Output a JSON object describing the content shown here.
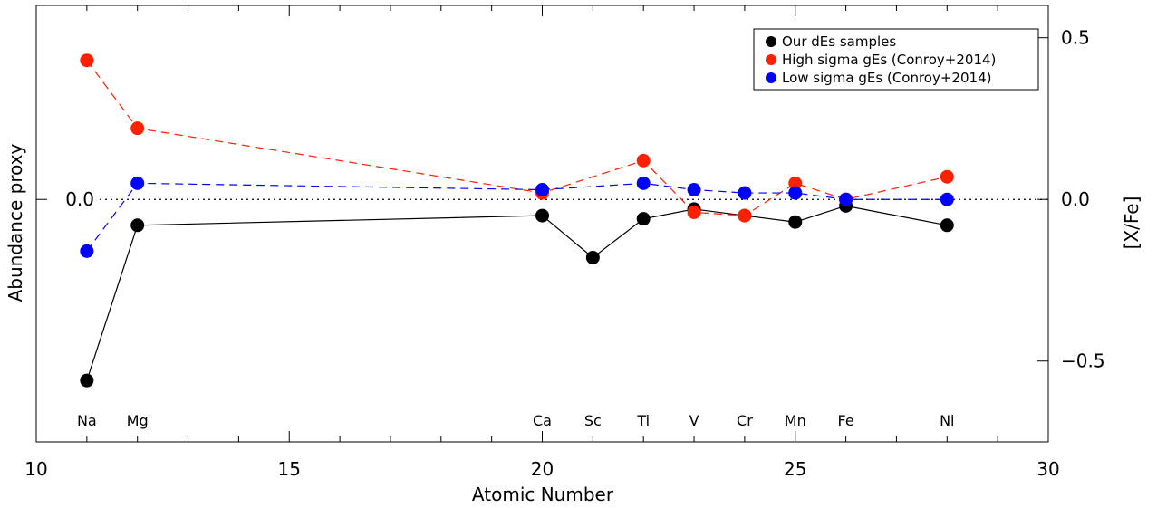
{
  "chart_data": {
    "type": "line",
    "xlabel": "Atomic Number",
    "ylabel": "Abundance proxy",
    "ylabel_right": "[X/Fe]",
    "xlim": [
      10,
      30
    ],
    "ylim": [
      -0.75,
      0.6
    ],
    "x_ticks": [
      "10",
      "15",
      "20",
      "25",
      "30"
    ],
    "y_tick_left": "0.0",
    "y_ticks_right": [
      "0.5",
      "0.0",
      "−0.5"
    ],
    "y_ticks_right_values": [
      0.5,
      0.0,
      -0.5
    ],
    "zero_line": true,
    "grid": false,
    "legend_position": "top-right",
    "element_labels": [
      {
        "x": 11,
        "text": "Na"
      },
      {
        "x": 12,
        "text": "Mg"
      },
      {
        "x": 20,
        "text": "Ca"
      },
      {
        "x": 21,
        "text": "Sc"
      },
      {
        "x": 22,
        "text": "Ti"
      },
      {
        "x": 23,
        "text": "V"
      },
      {
        "x": 24,
        "text": "Cr"
      },
      {
        "x": 25,
        "text": "Mn"
      },
      {
        "x": 26,
        "text": "Fe"
      },
      {
        "x": 28,
        "text": "Ni"
      }
    ],
    "series": [
      {
        "name": "Our dEs samples",
        "color": "#000000",
        "line": "solid",
        "x": [
          11,
          12,
          20,
          21,
          22,
          23,
          24,
          25,
          26,
          28
        ],
        "y": [
          -0.56,
          -0.08,
          -0.05,
          -0.18,
          -0.06,
          -0.03,
          -0.05,
          -0.07,
          -0.02,
          -0.08
        ]
      },
      {
        "name": "High sigma gEs (Conroy+2014)",
        "color": "#ff2000",
        "line": "dashed",
        "x": [
          11,
          12,
          20,
          22,
          23,
          24,
          25,
          26,
          28
        ],
        "y": [
          0.43,
          0.22,
          0.02,
          0.12,
          -0.04,
          -0.05,
          0.05,
          0.0,
          0.07
        ]
      },
      {
        "name": "Low sigma gEs (Conroy+2014)",
        "color": "#0000ff",
        "line": "dashed",
        "x": [
          11,
          12,
          20,
          22,
          23,
          24,
          25,
          26,
          28
        ],
        "y": [
          -0.16,
          0.05,
          0.03,
          0.05,
          0.03,
          0.02,
          0.02,
          0.0,
          0.0
        ]
      }
    ]
  }
}
